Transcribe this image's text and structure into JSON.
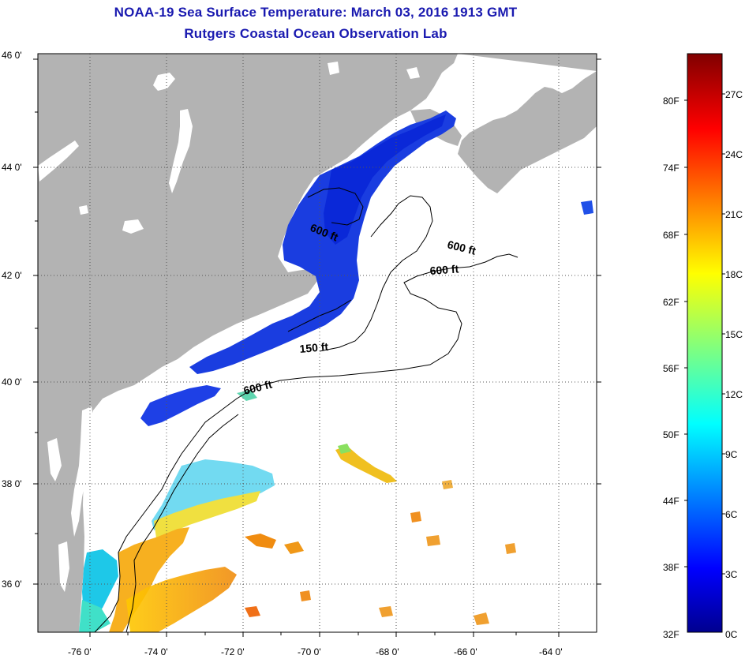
{
  "title_line1": "NOAA-19 Sea Surface Temperature:  March 03, 2016 1913 GMT",
  "title_line2": "Rutgers Coastal Ocean Observation Lab",
  "map": {
    "lat_range": [
      35,
      46
    ],
    "lon_range": [
      -77,
      -63
    ],
    "lat_labels": [
      "46 0'",
      "44 0'",
      "42 0'",
      "40 0'",
      "38 0'",
      "36 0'"
    ],
    "lon_labels": [
      "-76 0'",
      "-74 0'",
      "-72 0'",
      "-70 0'",
      "-68 0'",
      "-66 0'",
      "-64 0'"
    ],
    "contour_labels": [
      "600 ft",
      "600 ft",
      "600 ft",
      "150 ft",
      "600 ft"
    ],
    "colors": {
      "land": "#b3b3b3",
      "sea_no_data": "#ffffff",
      "grid": "#555555"
    }
  },
  "colorbar": {
    "fahrenheit_labels": [
      "80F",
      "74F",
      "68F",
      "62F",
      "56F",
      "50F",
      "44F",
      "38F",
      "32F"
    ],
    "celsius_labels": [
      "27C",
      "24C",
      "21C",
      "18C",
      "15C",
      "12C",
      "9C",
      "6C",
      "3C",
      "0C"
    ],
    "range_c": [
      0,
      29
    ],
    "colormap": "jet"
  }
}
